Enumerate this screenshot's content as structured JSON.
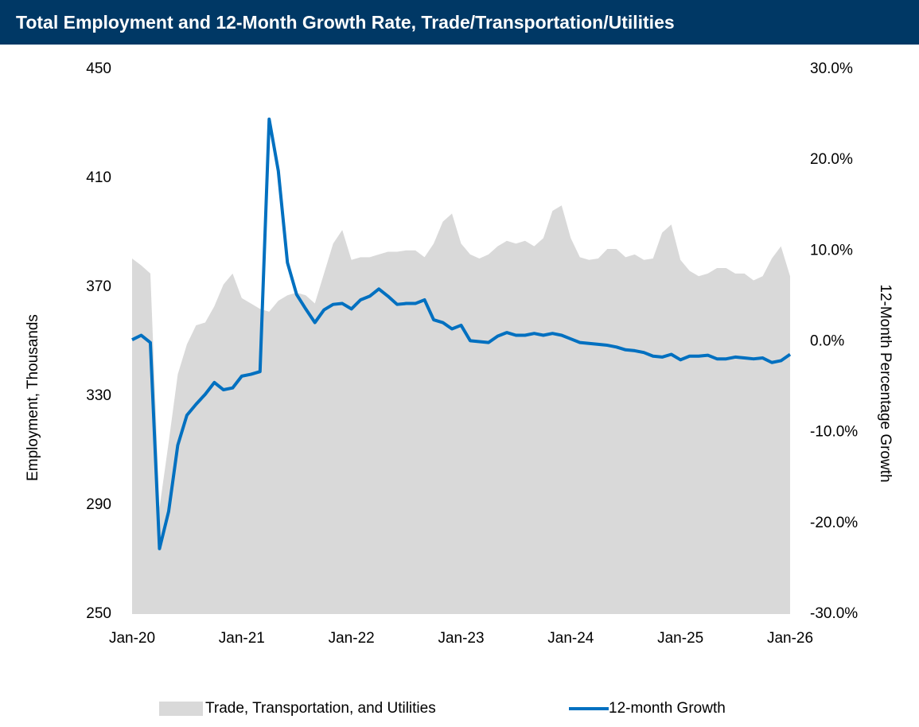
{
  "chart_data": {
    "type": "area_line",
    "title": "Total Employment and 12-Month Growth Rate, Trade/Transportation/Utilities",
    "y_label": "Employment, Thousands",
    "y2_label": "12-Month Percentage Growth",
    "categories": [
      "Jan-20",
      null,
      null,
      null,
      null,
      null,
      null,
      null,
      null,
      null,
      null,
      null,
      "Jan-21",
      null,
      null,
      null,
      null,
      null,
      null,
      null,
      null,
      null,
      null,
      null,
      "Jan-22",
      null,
      null,
      null,
      null,
      null,
      null,
      null,
      null,
      null,
      null,
      null,
      "Jan-23",
      null,
      null,
      null,
      null,
      null,
      null,
      null,
      null,
      null,
      null,
      null,
      "Jan-24",
      null,
      null,
      null,
      null,
      null,
      null,
      null,
      null,
      null,
      null,
      null,
      "Jan-25",
      null,
      null,
      null,
      null,
      null,
      null,
      null,
      null,
      null,
      null,
      null,
      "Jan-26"
    ],
    "series": [
      {
        "name": "Trade, Transportation, and Utilities",
        "type": "area",
        "color": "#d9d9d9",
        "values": [
          380.5,
          378,
          375,
          289,
          313,
          338,
          349,
          356,
          357,
          363,
          371,
          375,
          366,
          364,
          362,
          361,
          365,
          367,
          368,
          367,
          364,
          375,
          386,
          391,
          380,
          381,
          381,
          382,
          383,
          383,
          383.5,
          383.5,
          381,
          386,
          394,
          397,
          386,
          382,
          380.5,
          382,
          385,
          387,
          386,
          387,
          385,
          388,
          398,
          400,
          388,
          381,
          380,
          380.5,
          384,
          384,
          381,
          382,
          380,
          380.5,
          390,
          393,
          380,
          376,
          374,
          375,
          377,
          377,
          375,
          375,
          372.5,
          374,
          380.5,
          385,
          374
        ]
      },
      {
        "name": "12-month Growth",
        "type": "line",
        "axis": "y2",
        "color": "#0070c0",
        "values": [
          0.2,
          0.7,
          -0.1,
          -22.8,
          -18.7,
          -11.4,
          -8.1,
          -6.9,
          -5.8,
          -4.5,
          -5.3,
          -5.1,
          -3.8,
          -3.6,
          -3.3,
          24.5,
          18.8,
          8.7,
          5.2,
          3.6,
          2.1,
          3.5,
          4.1,
          4.2,
          3.6,
          4.6,
          5.0,
          5.8,
          5.0,
          4.1,
          4.2,
          4.2,
          4.6,
          2.4,
          2.1,
          1.4,
          1.8,
          0.1,
          0.0,
          -0.1,
          0.6,
          1.0,
          0.7,
          0.7,
          0.9,
          0.7,
          0.9,
          0.7,
          0.3,
          -0.1,
          -0.2,
          -0.3,
          -0.4,
          -0.6,
          -0.9,
          -1.0,
          -1.2,
          -1.6,
          -1.7,
          -1.4,
          -2.0,
          -1.6,
          -1.6,
          -1.5,
          -1.9,
          -1.9,
          -1.7,
          -1.8,
          -1.9,
          -1.8,
          -2.3,
          -2.1,
          -1.4
        ]
      }
    ],
    "ylim": [
      250,
      450
    ],
    "yticks": [
      250,
      290,
      330,
      370,
      410,
      450
    ],
    "y2lim": [
      -30,
      30
    ],
    "y2ticks": [
      {
        "value": -30,
        "label": "-30.0%"
      },
      {
        "value": -20,
        "label": "-20.0%"
      },
      {
        "value": -10,
        "label": "-10.0%"
      },
      {
        "value": 0,
        "label": "0.0%"
      },
      {
        "value": 10,
        "label": "10.0%"
      },
      {
        "value": 20,
        "label": "20.0%"
      },
      {
        "value": 30,
        "label": "30.0%"
      }
    ],
    "grid": false,
    "legend": "bottom"
  }
}
